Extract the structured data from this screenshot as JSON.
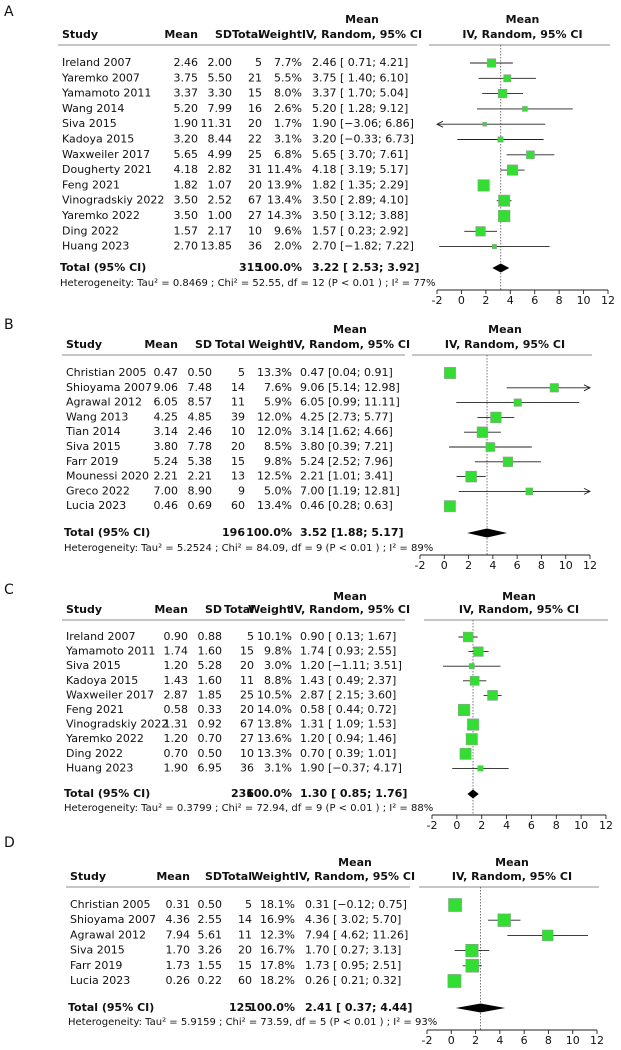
{
  "chart_data": [
    {
      "type": "forest",
      "panel": "A",
      "columns": [
        "Study",
        "Mean",
        "SD",
        "Total",
        "Weight"
      ],
      "ci_header": [
        "Mean",
        "IV, Random, 95% CI"
      ],
      "plot_header": [
        "Mean",
        "IV, Random, 95% CI"
      ],
      "studies": [
        "Ireland 2007",
        "Yaremko 2007",
        "Yamamoto 2011",
        "Wang 2014",
        "Siva 2015",
        "Kadoya 2015",
        "Waxweiler 2017",
        "Dougherty 2021",
        "Feng 2021",
        "Vinogradskiy 2022",
        "Yaremko 2022",
        "Ding 2022",
        "Huang 2023"
      ],
      "mean": [
        "2.46",
        "3.75",
        "3.37",
        "5.20",
        "1.90",
        "3.20",
        "5.65",
        "4.18",
        "1.82",
        "3.50",
        "3.50",
        "1.57",
        "2.70"
      ],
      "sd": [
        "2.00",
        "5.50",
        "3.30",
        "7.99",
        "11.31",
        "8.44",
        "4.99",
        "2.82",
        "1.07",
        "2.52",
        "1.00",
        "2.17",
        "13.85"
      ],
      "total": [
        5,
        21,
        15,
        16,
        20,
        22,
        25,
        31,
        20,
        67,
        27,
        10,
        36
      ],
      "weights": [
        7.7,
        5.5,
        8.0,
        2.6,
        1.7,
        3.1,
        6.8,
        11.4,
        13.9,
        13.4,
        14.3,
        9.6,
        2.0
      ],
      "weight_labels": [
        "7.7%",
        "5.5%",
        "8.0%",
        "2.6%",
        "1.7%",
        "3.1%",
        "6.8%",
        "11.4%",
        "13.9%",
        "13.4%",
        "14.3%",
        "9.6%",
        "2.0%"
      ],
      "effect": [
        2.46,
        3.75,
        3.37,
        5.2,
        1.9,
        3.2,
        5.65,
        4.18,
        1.82,
        3.5,
        3.5,
        1.57,
        2.7
      ],
      "lower": [
        0.71,
        1.4,
        1.7,
        1.28,
        -3.06,
        -0.33,
        3.7,
        3.19,
        1.35,
        2.89,
        3.12,
        0.23,
        -1.82
      ],
      "upper": [
        4.21,
        6.1,
        5.04,
        9.12,
        6.86,
        6.73,
        7.61,
        5.17,
        2.29,
        4.1,
        3.88,
        2.92,
        7.22
      ],
      "ci_labels": [
        "2.46 [ 0.71; 4.21]",
        "3.75 [ 1.40; 6.10]",
        "3.37 [ 1.70; 5.04]",
        "5.20 [ 1.28; 9.12]",
        "1.90 [−3.06; 6.86]",
        "3.20 [−0.33; 6.73]",
        "5.65 [ 3.70; 7.61]",
        "4.18 [ 3.19; 5.17]",
        "1.82 [ 1.35; 2.29]",
        "3.50 [ 2.89; 4.10]",
        "3.50 [ 3.12; 3.88]",
        "1.57 [ 0.23; 2.92]",
        "2.70 [−1.82; 7.22]"
      ],
      "total_label": "Total (95% CI)",
      "total_n": 315,
      "total_weight_label": "100.0%",
      "pooled": 3.22,
      "pooled_lower": 2.53,
      "pooled_upper": 3.92,
      "pooled_label": "3.22 [ 2.53; 3.92]",
      "heterogeneity": "Heterogeneity:  Tau² = 0.8469 ; Chi² = 52.55, df = 12   (P < 0.01 ) ; I² = 77%",
      "xlim": [
        -2,
        12
      ],
      "xticks": [
        -2,
        0,
        2,
        4,
        6,
        8,
        10,
        12
      ],
      "color": "#33dd33"
    },
    {
      "type": "forest",
      "panel": "B",
      "columns": [
        "Study",
        "Mean",
        "SD",
        "Total",
        "Weight"
      ],
      "ci_header": [
        "Mean",
        "IV, Random, 95% CI"
      ],
      "plot_header": [
        "Mean",
        "IV, Random, 95% CI"
      ],
      "studies": [
        "Christian 2005",
        "Shioyama 2007",
        "Agrawal 2012",
        "Wang 2013",
        "Tian 2014",
        "Siva 2015",
        "Farr 2019",
        "Mounessi 2020",
        "Greco 2022",
        "Lucia 2023"
      ],
      "mean": [
        "0.47",
        "9.06",
        "6.05",
        "4.25",
        "3.14",
        "3.80",
        "5.24",
        "2.21",
        "7.00",
        "0.46"
      ],
      "sd": [
        "0.50",
        "7.48",
        "8.57",
        "4.85",
        "2.46",
        "7.78",
        "5.38",
        "2.21",
        "8.90",
        "0.69"
      ],
      "total": [
        5,
        14,
        11,
        39,
        10,
        20,
        15,
        13,
        9,
        60
      ],
      "weights": [
        13.3,
        7.6,
        5.9,
        12.0,
        12.0,
        8.5,
        9.8,
        12.5,
        5.0,
        13.4
      ],
      "weight_labels": [
        "13.3%",
        "7.6%",
        "5.9%",
        "12.0%",
        "12.0%",
        "8.5%",
        "9.8%",
        "12.5%",
        "5.0%",
        "13.4%"
      ],
      "effect": [
        0.47,
        9.06,
        6.05,
        4.25,
        3.14,
        3.8,
        5.24,
        2.21,
        7.0,
        0.46
      ],
      "lower": [
        0.04,
        5.14,
        0.99,
        2.73,
        1.62,
        0.39,
        2.52,
        1.01,
        1.19,
        0.28
      ],
      "upper": [
        0.91,
        12.98,
        11.11,
        5.77,
        4.66,
        7.21,
        7.96,
        3.41,
        12.81,
        0.63
      ],
      "ci_labels": [
        "0.47 [0.04; 0.91]",
        "9.06 [5.14; 12.98]",
        "6.05 [0.99; 11.11]",
        "4.25 [2.73; 5.77]",
        "3.14 [1.62; 4.66]",
        "3.80 [0.39; 7.21]",
        "5.24 [2.52; 7.96]",
        "2.21 [1.01; 3.41]",
        "7.00 [1.19; 12.81]",
        "0.46 [0.28; 0.63]"
      ],
      "total_label": "Total (95% CI)",
      "total_n": 196,
      "total_weight_label": "100.0%",
      "pooled": 3.52,
      "pooled_lower": 1.88,
      "pooled_upper": 5.17,
      "pooled_label": "3.52 [1.88; 5.17]",
      "heterogeneity": "Heterogeneity:  Tau² = 5.2524 ; Chi² = 84.09, df = 9   (P < 0.01 ) ; I² = 89%",
      "xlim": [
        -2,
        12
      ],
      "xticks": [
        -2,
        0,
        2,
        4,
        6,
        8,
        10,
        12
      ],
      "color": "#33dd33"
    },
    {
      "type": "forest",
      "panel": "C",
      "columns": [
        "Study",
        "Mean",
        "SD",
        "Total",
        "Weight"
      ],
      "ci_header": [
        "Mean",
        "IV, Random, 95% CI"
      ],
      "plot_header": [
        "Mean",
        "IV, Random, 95% CI"
      ],
      "studies": [
        "Ireland 2007",
        "Yamamoto 2011",
        "Siva 2015",
        "Kadoya 2015",
        "Waxweiler 2017",
        "Feng 2021",
        "Vinogradskiy 2022",
        "Yaremko 2022",
        "Ding 2022",
        "Huang 2023"
      ],
      "mean": [
        "0.90",
        "1.74",
        "1.20",
        "1.43",
        "2.87",
        "0.58",
        "1.31",
        "1.20",
        "0.70",
        "1.90"
      ],
      "sd": [
        "0.88",
        "1.60",
        "5.28",
        "1.60",
        "1.85",
        "0.33",
        "0.92",
        "0.70",
        "0.50",
        "6.95"
      ],
      "total": [
        5,
        15,
        20,
        11,
        25,
        20,
        67,
        27,
        10,
        36
      ],
      "weights": [
        10.1,
        9.8,
        3.0,
        8.8,
        10.5,
        14.0,
        13.8,
        13.6,
        13.3,
        3.1
      ],
      "weight_labels": [
        "10.1%",
        "9.8%",
        "3.0%",
        "8.8%",
        "10.5%",
        "14.0%",
        "13.8%",
        "13.6%",
        "13.3%",
        "3.1%"
      ],
      "effect": [
        0.9,
        1.74,
        1.2,
        1.43,
        2.87,
        0.58,
        1.31,
        1.2,
        0.7,
        1.9
      ],
      "lower": [
        0.13,
        0.93,
        -1.11,
        0.49,
        2.15,
        0.44,
        1.09,
        0.94,
        0.39,
        -0.37
      ],
      "upper": [
        1.67,
        2.55,
        3.51,
        2.37,
        3.6,
        0.72,
        1.53,
        1.46,
        1.01,
        4.17
      ],
      "ci_labels": [
        "0.90 [ 0.13; 1.67]",
        "1.74 [ 0.93; 2.55]",
        "1.20 [−1.11; 3.51]",
        "1.43 [ 0.49; 2.37]",
        "2.87 [ 2.15; 3.60]",
        "0.58 [ 0.44; 0.72]",
        "1.31 [ 1.09; 1.53]",
        "1.20 [ 0.94; 1.46]",
        "0.70 [ 0.39; 1.01]",
        "1.90 [−0.37; 4.17]"
      ],
      "total_label": "Total (95% CI)",
      "total_n": 236,
      "total_weight_label": "100.0%",
      "pooled": 1.3,
      "pooled_lower": 0.85,
      "pooled_upper": 1.76,
      "pooled_label": "1.30 [ 0.85; 1.76]",
      "heterogeneity": "Heterogeneity:  Tau² = 0.3799 ; Chi² = 72.94, df = 9   (P < 0.01 ) ; I² = 88%",
      "xlim": [
        -2,
        12
      ],
      "xticks": [
        -2,
        0,
        2,
        4,
        6,
        8,
        10,
        12
      ],
      "color": "#33dd33"
    },
    {
      "type": "forest",
      "panel": "D",
      "columns": [
        "Study",
        "Mean",
        "SD",
        "Total",
        "Weight"
      ],
      "ci_header": [
        "Mean",
        "IV, Random, 95% CI"
      ],
      "plot_header": [
        "Mean",
        "IV, Random, 95% CI"
      ],
      "studies": [
        "Christian 2005",
        "Shioyama 2007",
        "Agrawal 2012",
        "Siva 2015",
        "Farr 2019",
        "Lucia 2023"
      ],
      "mean": [
        "0.31",
        "4.36",
        "7.94",
        "1.70",
        "1.73",
        "0.26"
      ],
      "sd": [
        "0.50",
        "2.55",
        "5.61",
        "3.26",
        "1.55",
        "0.22"
      ],
      "total": [
        5,
        14,
        11,
        20,
        15,
        60
      ],
      "weights": [
        18.1,
        16.9,
        12.3,
        16.7,
        17.8,
        18.2
      ],
      "weight_labels": [
        "18.1%",
        "16.9%",
        "12.3%",
        "16.7%",
        "17.8%",
        "18.2%"
      ],
      "effect": [
        0.31,
        4.36,
        7.94,
        1.7,
        1.73,
        0.26
      ],
      "lower": [
        -0.12,
        3.02,
        4.62,
        0.27,
        0.95,
        0.21
      ],
      "upper": [
        0.75,
        5.7,
        11.26,
        3.13,
        2.51,
        0.32
      ],
      "ci_labels": [
        "0.31 [−0.12; 0.75]",
        "4.36 [ 3.02; 5.70]",
        "7.94 [ 4.62; 11.26]",
        "1.70 [ 0.27; 3.13]",
        "1.73 [ 0.95; 2.51]",
        "0.26 [ 0.21; 0.32]"
      ],
      "total_label": "Total (95% CI)",
      "total_n": 125,
      "total_weight_label": "100.0%",
      "pooled": 2.41,
      "pooled_lower": 0.37,
      "pooled_upper": 4.44,
      "pooled_label": "2.41 [ 0.37; 4.44]",
      "heterogeneity": "Heterogeneity:  Tau² = 5.9159 ; Chi² = 73.59, df = 5   (P < 0.01 ) ; I² = 93%",
      "xlim": [
        -2,
        12
      ],
      "xticks": [
        -2,
        0,
        2,
        4,
        6,
        8,
        10,
        12
      ],
      "color": "#33dd33"
    }
  ]
}
